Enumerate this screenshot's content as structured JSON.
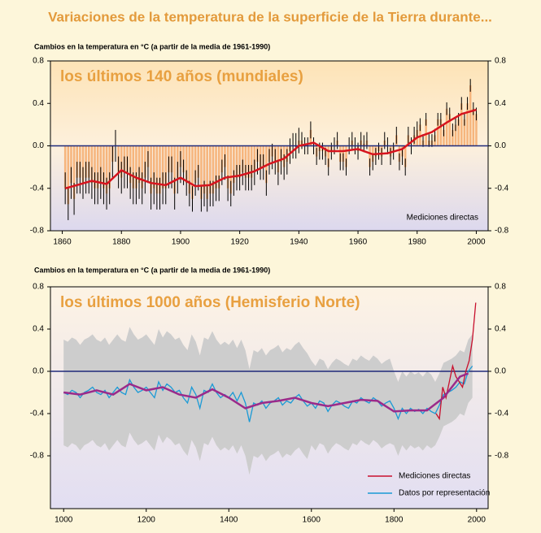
{
  "title": "Variaciones de la temperatura de la superficie de la Tierra durante...",
  "chart_data": [
    {
      "type": "bar",
      "y_label": "Cambios en la temperatura en °C (a partir de la media de 1961-1990)",
      "panel_title": "los últimos 140 años (mundiales)",
      "note": "Mediciones directas",
      "xlim": [
        1856,
        2004
      ],
      "xticks": [
        1860,
        1880,
        1900,
        1920,
        1940,
        1960,
        1980,
        2000
      ],
      "ylim": [
        -0.8,
        0.8
      ],
      "yticks": [
        -0.8,
        -0.4,
        {
          "value": 0,
          "label": "0.0"
        },
        0.4,
        0.8
      ],
      "bars": {
        "color": "#f6b57d",
        "x": [
          1861,
          1862,
          1863,
          1864,
          1865,
          1866,
          1867,
          1868,
          1869,
          1870,
          1871,
          1872,
          1873,
          1874,
          1875,
          1876,
          1877,
          1878,
          1879,
          1880,
          1881,
          1882,
          1883,
          1884,
          1885,
          1886,
          1887,
          1888,
          1889,
          1890,
          1891,
          1892,
          1893,
          1894,
          1895,
          1896,
          1897,
          1898,
          1899,
          1900,
          1901,
          1902,
          1903,
          1904,
          1905,
          1906,
          1907,
          1908,
          1909,
          1910,
          1911,
          1912,
          1913,
          1914,
          1915,
          1916,
          1917,
          1918,
          1919,
          1920,
          1921,
          1922,
          1923,
          1924,
          1925,
          1926,
          1927,
          1928,
          1929,
          1930,
          1931,
          1932,
          1933,
          1934,
          1935,
          1936,
          1937,
          1938,
          1939,
          1940,
          1941,
          1942,
          1943,
          1944,
          1945,
          1946,
          1947,
          1948,
          1949,
          1950,
          1951,
          1952,
          1953,
          1954,
          1955,
          1956,
          1957,
          1958,
          1959,
          1960,
          1961,
          1962,
          1963,
          1964,
          1965,
          1966,
          1967,
          1968,
          1969,
          1970,
          1971,
          1972,
          1973,
          1974,
          1975,
          1976,
          1977,
          1978,
          1979,
          1980,
          1981,
          1982,
          1983,
          1984,
          1985,
          1986,
          1987,
          1988,
          1989,
          1990,
          1991,
          1992,
          1993,
          1994,
          1995,
          1996,
          1997,
          1998,
          1999,
          2000
        ],
        "values": [
          -0.4,
          -0.55,
          -0.35,
          -0.5,
          -0.3,
          -0.3,
          -0.35,
          -0.3,
          -0.3,
          -0.35,
          -0.4,
          -0.4,
          -0.35,
          -0.4,
          -0.45,
          -0.4,
          -0.15,
          0,
          -0.25,
          -0.3,
          -0.25,
          -0.25,
          -0.35,
          -0.4,
          -0.4,
          -0.35,
          -0.4,
          -0.3,
          -0.2,
          -0.45,
          -0.4,
          -0.45,
          -0.45,
          -0.4,
          -0.4,
          -0.25,
          -0.25,
          -0.45,
          -0.3,
          -0.2,
          -0.25,
          -0.35,
          -0.45,
          -0.5,
          -0.35,
          -0.3,
          -0.5,
          -0.45,
          -0.5,
          -0.45,
          -0.45,
          -0.4,
          -0.4,
          -0.25,
          -0.2,
          -0.4,
          -0.45,
          -0.35,
          -0.3,
          -0.3,
          -0.25,
          -0.3,
          -0.3,
          -0.3,
          -0.25,
          -0.15,
          -0.2,
          -0.2,
          -0.35,
          -0.15,
          -0.1,
          -0.15,
          -0.25,
          -0.15,
          -0.2,
          -0.15,
          -0.05,
          0,
          0,
          0.05,
          0.05,
          0,
          0,
          0.15,
          0,
          -0.1,
          -0.05,
          -0.05,
          -0.1,
          -0.2,
          -0.05,
          0,
          0.05,
          -0.15,
          -0.15,
          -0.2,
          0,
          0.05,
          0,
          -0.05,
          0.05,
          0.02,
          0.05,
          -0.2,
          -0.15,
          -0.1,
          -0.05,
          -0.1,
          0.05,
          0,
          -0.1,
          -0.05,
          0.1,
          -0.15,
          -0.1,
          -0.2,
          0.1,
          0,
          0.1,
          0.15,
          0.2,
          0.05,
          0.25,
          0.05,
          0.05,
          0.1,
          0.25,
          0.25,
          0.15,
          0.35,
          0.3,
          0.15,
          0.2,
          0.25,
          0.4,
          0.25,
          0.4,
          0.57,
          0.35,
          0.3
        ],
        "errors": [
          0.15,
          0.15,
          0.15,
          0.15,
          0.15,
          0.15,
          0.15,
          0.15,
          0.15,
          0.15,
          0.15,
          0.15,
          0.15,
          0.15,
          0.15,
          0.15,
          0.15,
          0.15,
          0.15,
          0.15,
          0.15,
          0.15,
          0.15,
          0.15,
          0.15,
          0.15,
          0.15,
          0.15,
          0.15,
          0.15,
          0.15,
          0.15,
          0.15,
          0.15,
          0.15,
          0.15,
          0.15,
          0.15,
          0.15,
          0.15,
          0.12,
          0.12,
          0.12,
          0.12,
          0.12,
          0.12,
          0.12,
          0.12,
          0.12,
          0.12,
          0.12,
          0.12,
          0.12,
          0.12,
          0.12,
          0.12,
          0.12,
          0.12,
          0.12,
          0.12,
          0.12,
          0.12,
          0.12,
          0.12,
          0.12,
          0.12,
          0.12,
          0.12,
          0.12,
          0.12,
          0.12,
          0.12,
          0.12,
          0.12,
          0.12,
          0.12,
          0.12,
          0.12,
          0.12,
          0.12,
          0.08,
          0.08,
          0.08,
          0.08,
          0.08,
          0.08,
          0.08,
          0.08,
          0.08,
          0.08,
          0.08,
          0.08,
          0.08,
          0.08,
          0.08,
          0.08,
          0.08,
          0.08,
          0.08,
          0.08,
          0.08,
          0.08,
          0.08,
          0.08,
          0.08,
          0.08,
          0.08,
          0.08,
          0.08,
          0.08,
          0.08,
          0.08,
          0.08,
          0.08,
          0.08,
          0.08,
          0.08,
          0.08,
          0.08,
          0.08,
          0.06,
          0.06,
          0.06,
          0.06,
          0.06,
          0.06,
          0.06,
          0.06,
          0.06,
          0.06,
          0.06,
          0.06,
          0.06,
          0.06,
          0.06,
          0.06,
          0.06,
          0.06,
          0.06,
          0.06
        ]
      },
      "smooth": {
        "color": "#d7141e",
        "x": [
          1861,
          1865,
          1870,
          1875,
          1880,
          1885,
          1890,
          1895,
          1900,
          1905,
          1910,
          1915,
          1920,
          1925,
          1930,
          1935,
          1940,
          1945,
          1950,
          1955,
          1960,
          1965,
          1970,
          1975,
          1980,
          1985,
          1990,
          1995,
          2000
        ],
        "values": [
          -0.4,
          -0.37,
          -0.33,
          -0.36,
          -0.23,
          -0.3,
          -0.35,
          -0.37,
          -0.3,
          -0.38,
          -0.37,
          -0.3,
          -0.28,
          -0.24,
          -0.17,
          -0.12,
          0,
          0.03,
          -0.05,
          -0.05,
          -0.03,
          -0.08,
          -0.07,
          -0.03,
          0.08,
          0.13,
          0.22,
          0.3,
          0.34
        ]
      }
    },
    {
      "type": "line",
      "y_label": "Cambios en la temperatura en °C (a partir de la media de 1961-1990)",
      "panel_title": "los últimos 1000 años (Hemisferio Norte)",
      "xlim": [
        968,
        2028
      ],
      "xticks": [
        1000,
        1200,
        1400,
        1600,
        1800,
        2000
      ],
      "ylim": [
        -1.3,
        0.8
      ],
      "yticks": [
        -0.8,
        -0.4,
        {
          "value": 0,
          "label": "0.0"
        },
        0.4,
        0.8
      ],
      "legend": "lower right",
      "band_color": "#cdcdcd",
      "series": [
        {
          "name": "Mediciones directas",
          "color": "#c8102e",
          "x": [
            1902,
            1910,
            1918,
            1926,
            1934,
            1942,
            1950,
            1958,
            1966,
            1974,
            1982,
            1990,
            1998
          ],
          "values": [
            -0.4,
            -0.45,
            -0.15,
            -0.25,
            -0.1,
            0.05,
            -0.05,
            -0.1,
            -0.15,
            0,
            0.1,
            0.3,
            0.65
          ]
        },
        {
          "name": "Datos por representación",
          "color": "#1a9ad6",
          "x": [
            1000,
            1010,
            1020,
            1030,
            1040,
            1050,
            1060,
            1070,
            1080,
            1090,
            1100,
            1110,
            1120,
            1130,
            1140,
            1150,
            1160,
            1170,
            1180,
            1190,
            1200,
            1210,
            1220,
            1230,
            1240,
            1250,
            1260,
            1270,
            1280,
            1290,
            1300,
            1310,
            1320,
            1330,
            1340,
            1350,
            1360,
            1370,
            1380,
            1390,
            1400,
            1410,
            1420,
            1430,
            1440,
            1450,
            1460,
            1470,
            1480,
            1490,
            1500,
            1510,
            1520,
            1530,
            1540,
            1550,
            1560,
            1570,
            1580,
            1590,
            1600,
            1610,
            1620,
            1630,
            1640,
            1650,
            1660,
            1670,
            1680,
            1690,
            1700,
            1710,
            1720,
            1730,
            1740,
            1750,
            1760,
            1770,
            1780,
            1790,
            1800,
            1810,
            1820,
            1830,
            1840,
            1850,
            1860,
            1870,
            1880,
            1890,
            1900,
            1910,
            1920,
            1930,
            1940,
            1950,
            1960,
            1970,
            1980,
            1990
          ],
          "values": [
            -0.2,
            -0.22,
            -0.18,
            -0.2,
            -0.25,
            -0.2,
            -0.18,
            -0.15,
            -0.2,
            -0.22,
            -0.18,
            -0.25,
            -0.2,
            -0.15,
            -0.2,
            -0.22,
            -0.08,
            -0.15,
            -0.2,
            -0.18,
            -0.15,
            -0.2,
            -0.25,
            -0.1,
            -0.18,
            -0.12,
            -0.15,
            -0.2,
            -0.18,
            -0.25,
            -0.3,
            -0.15,
            -0.22,
            -0.35,
            -0.18,
            -0.2,
            -0.12,
            -0.2,
            -0.25,
            -0.22,
            -0.25,
            -0.2,
            -0.28,
            -0.2,
            -0.3,
            -0.48,
            -0.3,
            -0.32,
            -0.28,
            -0.35,
            -0.3,
            -0.28,
            -0.25,
            -0.32,
            -0.28,
            -0.3,
            -0.25,
            -0.22,
            -0.28,
            -0.33,
            -0.3,
            -0.35,
            -0.28,
            -0.3,
            -0.38,
            -0.32,
            -0.28,
            -0.3,
            -0.33,
            -0.35,
            -0.28,
            -0.3,
            -0.25,
            -0.28,
            -0.3,
            -0.25,
            -0.28,
            -0.33,
            -0.3,
            -0.28,
            -0.35,
            -0.45,
            -0.35,
            -0.4,
            -0.35,
            -0.38,
            -0.36,
            -0.4,
            -0.35,
            -0.38,
            -0.4,
            -0.32,
            -0.22,
            -0.2,
            -0.18,
            -0.15,
            -0.1,
            -0.12,
            0,
            0.05
          ],
          "errors": [
            0.5,
            0.5,
            0.5,
            0.5,
            0.5,
            0.5,
            0.5,
            0.5,
            0.5,
            0.5,
            0.5,
            0.5,
            0.5,
            0.5,
            0.5,
            0.5,
            0.5,
            0.5,
            0.5,
            0.5,
            0.5,
            0.5,
            0.5,
            0.5,
            0.5,
            0.5,
            0.5,
            0.5,
            0.5,
            0.5,
            0.5,
            0.5,
            0.5,
            0.5,
            0.5,
            0.5,
            0.5,
            0.5,
            0.5,
            0.5,
            0.5,
            0.5,
            0.5,
            0.5,
            0.5,
            0.5,
            0.5,
            0.5,
            0.5,
            0.5,
            0.5,
            0.5,
            0.5,
            0.5,
            0.5,
            0.5,
            0.5,
            0.5,
            0.5,
            0.5,
            0.4,
            0.4,
            0.4,
            0.4,
            0.4,
            0.4,
            0.4,
            0.4,
            0.4,
            0.4,
            0.4,
            0.4,
            0.4,
            0.4,
            0.4,
            0.4,
            0.4,
            0.4,
            0.4,
            0.4,
            0.35,
            0.35,
            0.35,
            0.35,
            0.35,
            0.35,
            0.35,
            0.35,
            0.35,
            0.35,
            0.3,
            0.3,
            0.3,
            0.3,
            0.3,
            0.3,
            0.3,
            0.3,
            0.3,
            0.3
          ]
        }
      ],
      "smooth": {
        "color": "#9b2a8a",
        "x": [
          1000,
          1040,
          1080,
          1120,
          1160,
          1200,
          1240,
          1280,
          1320,
          1360,
          1400,
          1440,
          1480,
          1520,
          1560,
          1600,
          1640,
          1680,
          1720,
          1760,
          1800,
          1840,
          1880,
          1920,
          1960,
          1980
        ],
        "values": [
          -0.2,
          -0.22,
          -0.18,
          -0.22,
          -0.12,
          -0.18,
          -0.15,
          -0.22,
          -0.25,
          -0.17,
          -0.25,
          -0.35,
          -0.3,
          -0.28,
          -0.25,
          -0.3,
          -0.33,
          -0.3,
          -0.27,
          -0.28,
          -0.38,
          -0.37,
          -0.37,
          -0.25,
          -0.05,
          -0.02
        ]
      }
    }
  ]
}
